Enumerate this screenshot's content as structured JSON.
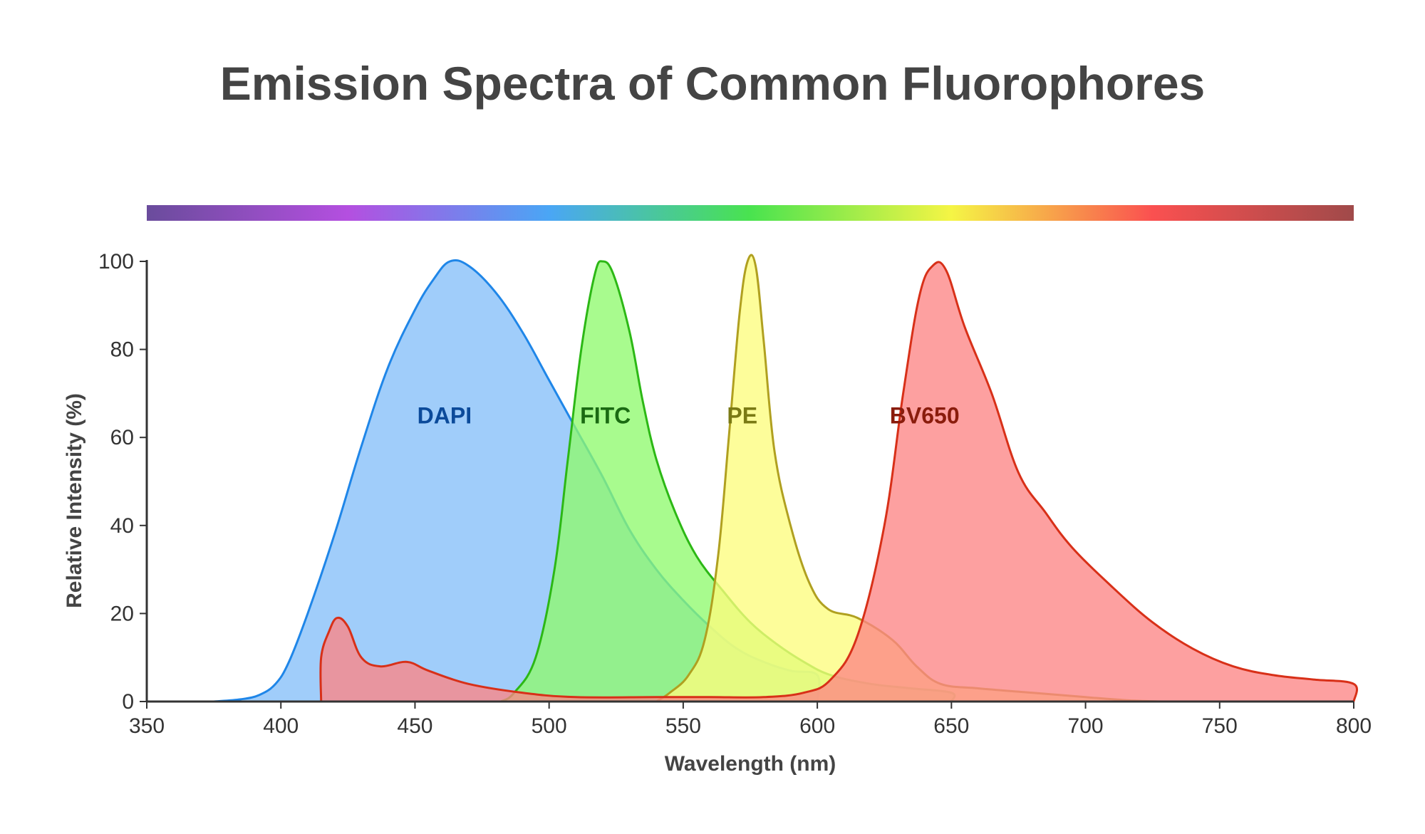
{
  "chart_data": {
    "type": "area",
    "title": "Emission Spectra of Common Fluorophores",
    "xlabel": "Wavelength (nm)",
    "ylabel": "Relative Intensity (%)",
    "xlim": [
      350,
      800
    ],
    "ylim": [
      0,
      100
    ],
    "xticks": [
      350,
      400,
      450,
      500,
      550,
      600,
      650,
      700,
      750,
      800
    ],
    "yticks": [
      0,
      20,
      40,
      60,
      80,
      100
    ],
    "grid": false,
    "legend": "none",
    "spectrum_bar": [
      "#6a4c9c",
      "#b44fe0",
      "#4aa6f5",
      "#49e34f",
      "#f5f545",
      "#fa5050",
      "#a04a4a"
    ],
    "series": [
      {
        "name": "DAPI",
        "fill": "#85bff9",
        "stroke": "#1f86e8",
        "label_color": "#0b4a9a",
        "label_pos": [
          461,
          65
        ],
        "points": [
          [
            375,
            0
          ],
          [
            385,
            0.5
          ],
          [
            392,
            1.5
          ],
          [
            398,
            4
          ],
          [
            403,
            9
          ],
          [
            410,
            20
          ],
          [
            420,
            38
          ],
          [
            430,
            58
          ],
          [
            440,
            76
          ],
          [
            450,
            89
          ],
          [
            457,
            96
          ],
          [
            463,
            100
          ],
          [
            470,
            99
          ],
          [
            480,
            93
          ],
          [
            490,
            84
          ],
          [
            500,
            73
          ],
          [
            510,
            62
          ],
          [
            520,
            51
          ],
          [
            530,
            39
          ],
          [
            540,
            30
          ],
          [
            550,
            23
          ],
          [
            560,
            17
          ],
          [
            570,
            12
          ],
          [
            580,
            9
          ],
          [
            590,
            7
          ],
          [
            600,
            6
          ],
          [
            600,
            0
          ]
        ]
      },
      {
        "name": "FITC",
        "fill": "#8ffa6e",
        "stroke": "#2cb815",
        "label_color": "#1a6a12",
        "label_pos": [
          521,
          65
        ],
        "points": [
          [
            482,
            0
          ],
          [
            487,
            2
          ],
          [
            495,
            10
          ],
          [
            502,
            30
          ],
          [
            507,
            55
          ],
          [
            512,
            80
          ],
          [
            517,
            97
          ],
          [
            520,
            100
          ],
          [
            524,
            97
          ],
          [
            530,
            84
          ],
          [
            535,
            68
          ],
          [
            540,
            55
          ],
          [
            547,
            43
          ],
          [
            555,
            33
          ],
          [
            565,
            25
          ],
          [
            575,
            18
          ],
          [
            585,
            13
          ],
          [
            595,
            9
          ],
          [
            605,
            6
          ],
          [
            620,
            4
          ],
          [
            635,
            3
          ],
          [
            650,
            2
          ],
          [
            650,
            0
          ]
        ]
      },
      {
        "name": "PE",
        "fill": "#fcfc7e",
        "stroke": "#b0a020",
        "label_color": "#7a7a14",
        "label_pos": [
          572,
          65
        ],
        "points": [
          [
            540,
            0
          ],
          [
            545,
            2
          ],
          [
            552,
            6
          ],
          [
            558,
            14
          ],
          [
            563,
            33
          ],
          [
            567,
            60
          ],
          [
            571,
            88
          ],
          [
            574,
            100
          ],
          [
            577,
            99
          ],
          [
            580,
            82
          ],
          [
            584,
            57
          ],
          [
            590,
            40
          ],
          [
            597,
            27
          ],
          [
            604,
            21
          ],
          [
            615,
            19
          ],
          [
            628,
            14
          ],
          [
            637,
            8
          ],
          [
            646,
            4
          ],
          [
            660,
            3
          ],
          [
            680,
            2
          ],
          [
            700,
            1
          ],
          [
            715,
            0.3
          ],
          [
            728,
            0
          ]
        ]
      },
      {
        "name": "BV650",
        "fill": "#fd8585",
        "stroke": "#d83018",
        "label_color": "#8a1c0c",
        "label_pos": [
          640,
          65
        ],
        "points": [
          [
            415,
            0
          ],
          [
            415,
            10
          ],
          [
            418,
            16
          ],
          [
            421,
            19
          ],
          [
            425,
            17
          ],
          [
            430,
            10
          ],
          [
            437,
            8
          ],
          [
            447,
            9
          ],
          [
            455,
            7
          ],
          [
            470,
            4
          ],
          [
            490,
            2
          ],
          [
            510,
            1
          ],
          [
            540,
            1
          ],
          [
            560,
            1
          ],
          [
            580,
            1
          ],
          [
            595,
            2
          ],
          [
            605,
            5
          ],
          [
            615,
            15
          ],
          [
            625,
            40
          ],
          [
            632,
            70
          ],
          [
            638,
            92
          ],
          [
            643,
            99
          ],
          [
            648,
            98
          ],
          [
            655,
            85
          ],
          [
            665,
            70
          ],
          [
            675,
            52
          ],
          [
            685,
            43
          ],
          [
            695,
            35
          ],
          [
            710,
            26
          ],
          [
            725,
            18
          ],
          [
            740,
            12
          ],
          [
            755,
            8
          ],
          [
            770,
            6
          ],
          [
            785,
            5
          ],
          [
            800,
            4
          ],
          [
            800,
            0
          ]
        ]
      }
    ]
  }
}
